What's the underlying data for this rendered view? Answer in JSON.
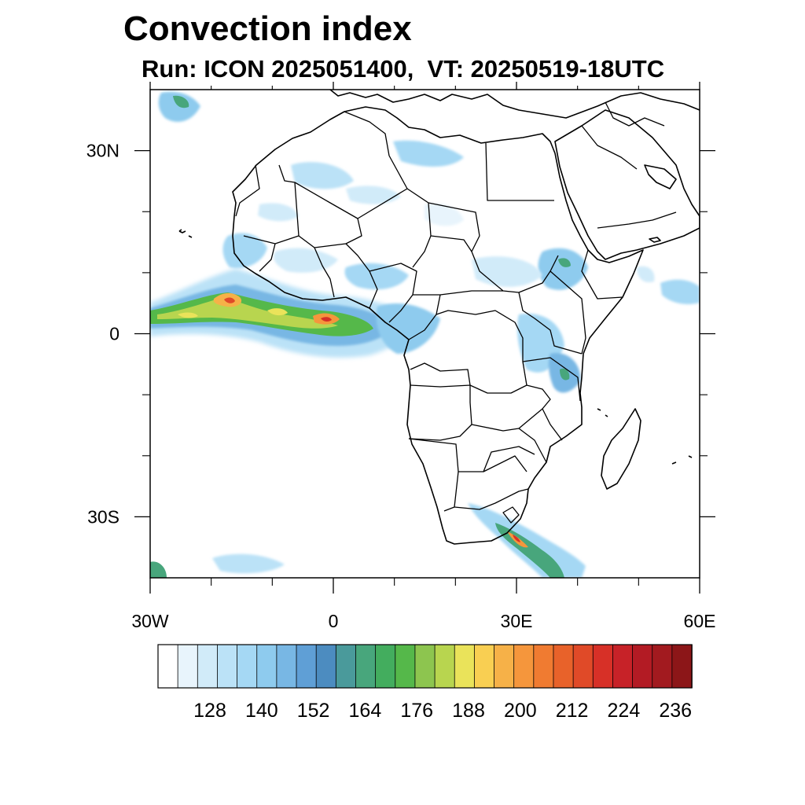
{
  "title": "Convection index",
  "subtitle": "Run: ICON 2025051400,  VT: 20250519-18UTC",
  "map": {
    "lon_range": [
      -30,
      60
    ],
    "lat_range": [
      -40,
      40
    ],
    "x_ticks": [
      {
        "lon": -30,
        "label": "30W"
      },
      {
        "lon": 0,
        "label": "0"
      },
      {
        "lon": 30,
        "label": "30E"
      },
      {
        "lon": 60,
        "label": "60E"
      }
    ],
    "y_ticks": [
      {
        "lat": 30,
        "label": "30N"
      },
      {
        "lat": 0,
        "label": "0"
      },
      {
        "lat": -30,
        "label": "30S"
      }
    ],
    "minor_lon": [
      -20,
      -10,
      10,
      20,
      40,
      50
    ],
    "minor_lat": [
      20,
      10,
      -10,
      -20
    ]
  },
  "colorbar": {
    "colors": [
      "#ffffff",
      "#e8f4fc",
      "#d1ebf9",
      "#bbe2f7",
      "#a5d8f4",
      "#8ecbee",
      "#78b7e4",
      "#5f9fd6",
      "#4c8cc0",
      "#4a9a9b",
      "#48a67c",
      "#43ad5e",
      "#55b84a",
      "#8dc54f",
      "#b8d54f",
      "#eae35a",
      "#f9cf52",
      "#f6b148",
      "#f5963c",
      "#f07b31",
      "#e8622a",
      "#e04a28",
      "#d73027",
      "#c72228",
      "#b31b24",
      "#a21a1f",
      "#8c1618"
    ],
    "tick_labels": [
      "128",
      "140",
      "152",
      "164",
      "176",
      "188",
      "200",
      "212",
      "224",
      "236"
    ]
  }
}
